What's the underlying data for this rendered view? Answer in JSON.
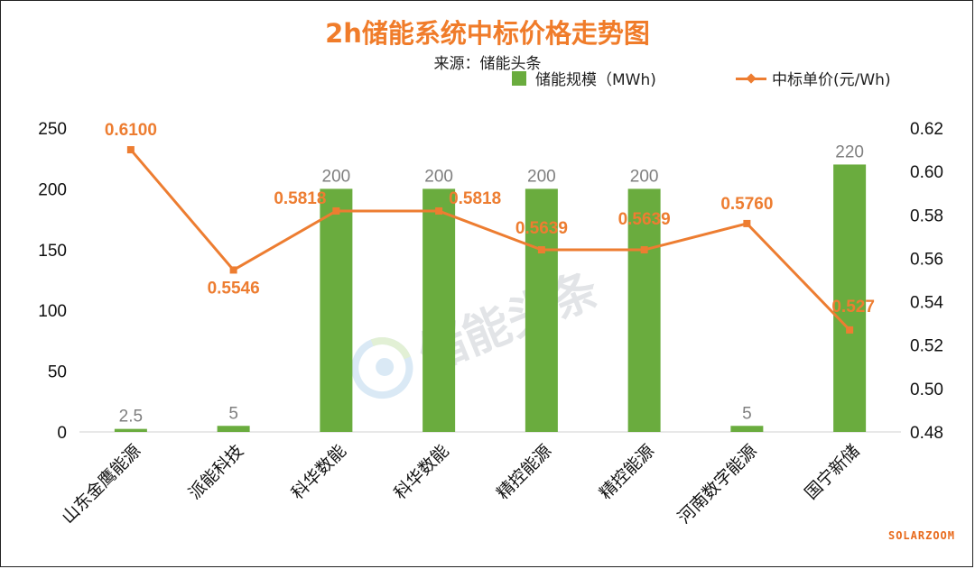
{
  "chart_data": {
    "type": "bar+line",
    "title": "2h储能系统中标价格走势图",
    "subtitle": "来源：储能头条",
    "categories": [
      "山东金鹰能源",
      "派能科技",
      "科华数能",
      "科华数能",
      "精控能源",
      "精控能源",
      "河南数字能源",
      "国宁新储"
    ],
    "series": [
      {
        "name": "储能规模（MWh)",
        "type": "bar",
        "axis": "left",
        "values": [
          2.5,
          5,
          200,
          200,
          200,
          200,
          5,
          220
        ],
        "labels": [
          "2.5",
          "5",
          "200",
          "200",
          "200",
          "200",
          "5",
          "220"
        ],
        "color": "#6aac3e"
      },
      {
        "name": "中标单价(元/Wh)",
        "type": "line",
        "axis": "right",
        "values": [
          0.61,
          0.5546,
          0.5818,
          0.5818,
          0.5639,
          0.5639,
          0.576,
          0.527
        ],
        "labels": [
          "0.6100",
          "0.5546",
          "0.5818",
          "0.5818",
          "0.5639",
          "0.5639",
          "0.5760",
          "0.527"
        ],
        "color": "#ed7d31"
      }
    ],
    "y_left": {
      "min": 0,
      "max": 250,
      "ticks": [
        "0",
        "50",
        "100",
        "150",
        "200",
        "250"
      ]
    },
    "y_right": {
      "min": 0.48,
      "max": 0.62,
      "ticks": [
        "0.48",
        "0.50",
        "0.52",
        "0.54",
        "0.56",
        "0.58",
        "0.60",
        "0.62"
      ]
    },
    "legend_position": "top-right",
    "grid": false
  },
  "watermark": "储能头条",
  "brand": "SOLARZOOM"
}
